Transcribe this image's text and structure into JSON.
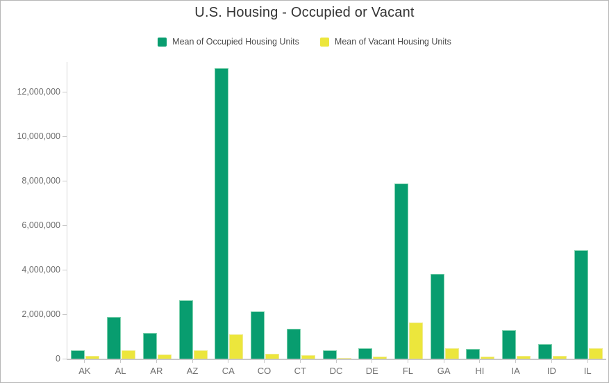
{
  "window": {
    "background_color": "#ffffff",
    "border_color": "#b6b6b6"
  },
  "header": {
    "title": "U.S. Housing - Occupied or Vacant",
    "title_color": "#333333"
  },
  "legend": {
    "position": "top",
    "text_color": "#4a4a4a",
    "items": [
      {
        "label": "Mean of Occupied Housing Units",
        "swatch_color": "#089d6f"
      },
      {
        "label": "Mean of Vacant Housing Units",
        "swatch_color": "#ece63c"
      }
    ]
  },
  "chart_data": {
    "type": "bar",
    "title": "U.S. Housing - Occupied or Vacant",
    "xlabel": "",
    "ylabel": "",
    "grid": false,
    "legend_position": "top",
    "categories": [
      "AK",
      "AL",
      "AR",
      "AZ",
      "CA",
      "CO",
      "CT",
      "DC",
      "DE",
      "FL",
      "GA",
      "HI",
      "IA",
      "ID",
      "IL"
    ],
    "series": [
      {
        "name": "Mean of Occupied Housing Units",
        "color": "#089d6f",
        "border_color": "#7fd2ae",
        "values": [
          390000,
          1870000,
          1160000,
          2620000,
          13060000,
          2120000,
          1350000,
          360000,
          460000,
          7880000,
          3810000,
          440000,
          1280000,
          650000,
          4880000
        ]
      },
      {
        "name": "Mean of Vacant Housing Units",
        "color": "#ece63c",
        "border_color": "#f0eb8e",
        "values": [
          120000,
          380000,
          190000,
          380000,
          1090000,
          220000,
          150000,
          30000,
          80000,
          1630000,
          470000,
          90000,
          140000,
          110000,
          470000
        ]
      }
    ],
    "ylim": [
      0,
      13350000
    ],
    "y_ticks": [
      0,
      2000000,
      4000000,
      6000000,
      8000000,
      10000000,
      12000000
    ],
    "y_tick_labels": [
      "0",
      "2,000,000",
      "4,000,000",
      "6,000,000",
      "8,000,000",
      "10,000,000",
      "12,000,000"
    ],
    "axis_text_color": "#6e6e6e",
    "axis_line_color": "#c8c8c8"
  }
}
